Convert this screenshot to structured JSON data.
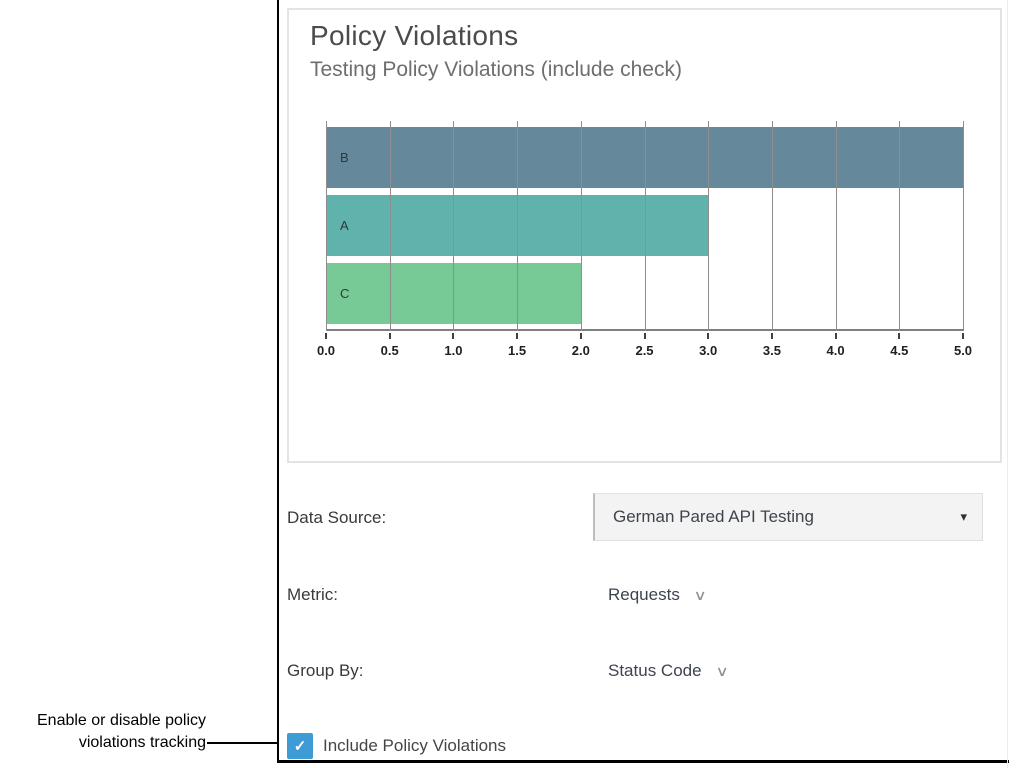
{
  "annotation": {
    "text_line1": "Enable or disable policy",
    "text_line2": "violations tracking"
  },
  "card": {
    "title": "Policy Violations",
    "subtitle": "Testing Policy Violations (include check)"
  },
  "form": {
    "data_source": {
      "label": "Data Source:",
      "value": "German Pared API Testing"
    },
    "metric": {
      "label": "Metric:",
      "value": "Requests"
    },
    "group_by": {
      "label": "Group By:",
      "value": "Status Code"
    },
    "include_checkbox": {
      "label": "Include Policy Violations",
      "checked": true
    }
  },
  "icons": {
    "check": "✓",
    "caret_down": "▾",
    "chevron_down": "∨"
  },
  "colors": {
    "checkbox_blue": "#3E9BD5",
    "card_border": "#E3E3E3",
    "panel_border": "#000000"
  },
  "chart_data": {
    "type": "bar",
    "orientation": "horizontal",
    "title": "Policy Violations",
    "subtitle": "Testing Policy Violations (include check)",
    "categories": [
      "B",
      "A",
      "C"
    ],
    "values": [
      5,
      3,
      2
    ],
    "xlim": [
      0,
      5
    ],
    "x_ticks": [
      "0.0",
      "0.5",
      "1.0",
      "1.5",
      "2.0",
      "2.5",
      "3.0",
      "3.5",
      "4.0",
      "4.5",
      "5.0"
    ],
    "bar_colors": [
      "#65899B",
      "#5FB3AC",
      "#77C995"
    ],
    "grid": true,
    "legend": false,
    "xlabel": "",
    "ylabel": ""
  }
}
